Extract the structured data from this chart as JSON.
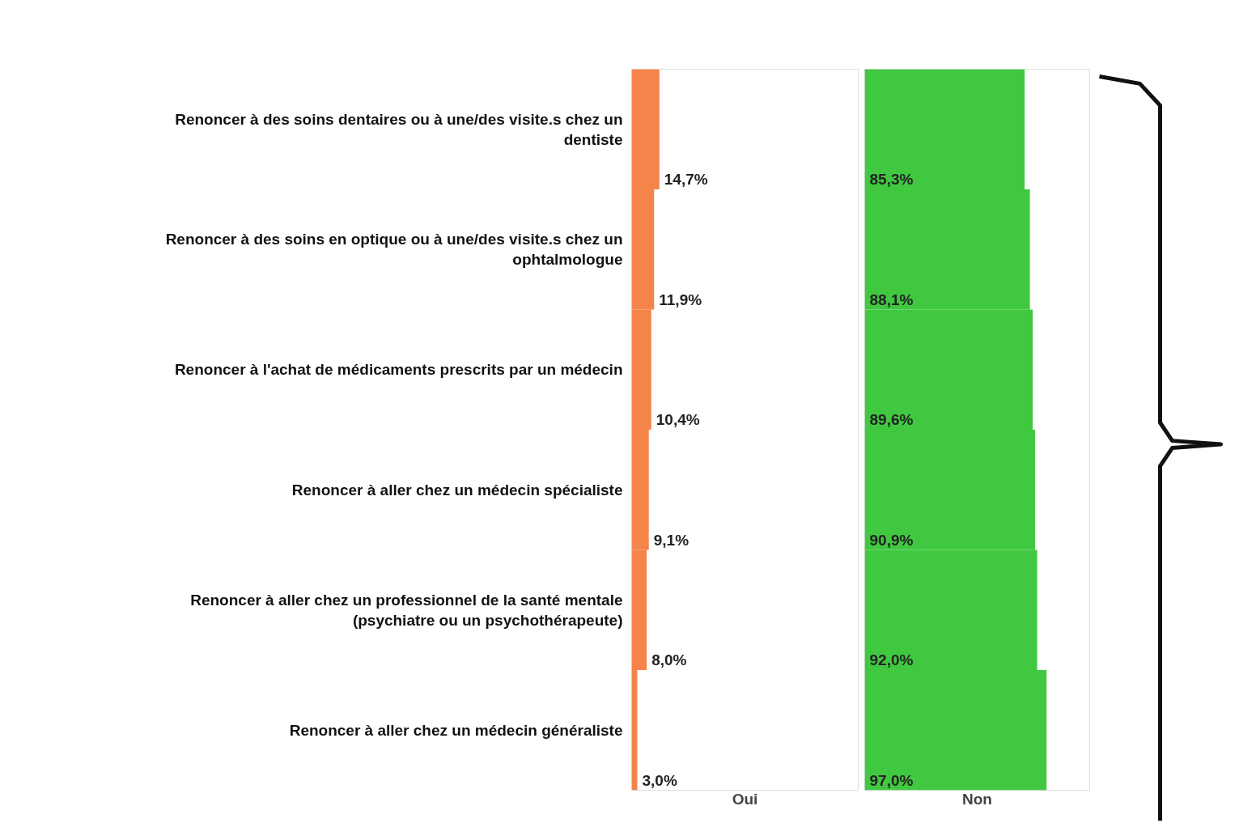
{
  "chart_data": [
    {
      "type": "bar",
      "orientation": "horizontal",
      "xlabel": "Oui",
      "categories": [
        "Renoncer à des soins dentaires ou à une/des visite.s chez un dentiste",
        "Renoncer à des soins en optique ou à une/des visite.s chez un ophtalmologue",
        "Renoncer à l'achat de médicaments prescrits par un médecin",
        "Renoncer à aller chez un médecin spécialiste",
        "Renoncer à aller chez un professionnel de la santé mentale (psychiatre ou un psychothérapeute)",
        "Renoncer à aller chez un médecin généraliste"
      ],
      "values": [
        14.7,
        11.9,
        10.4,
        9.1,
        8.0,
        3.0
      ],
      "color": "#f5844a",
      "value_labels": [
        "14,7%",
        "11,9%",
        "10,4%",
        "9,1%",
        "8,0%",
        "3,0%"
      ],
      "xlim": [
        0,
        120
      ],
      "tick_labels": "y"
    },
    {
      "type": "bar",
      "orientation": "horizontal",
      "xlabel": "Non",
      "categories": [
        "Renoncer à des soins dentaires ou à une/des visite.s chez un dentiste",
        "Renoncer à des soins en optique ou à une/des visite.s chez un ophtalmologue",
        "Renoncer à l'achat de médicaments prescrits par un médecin",
        "Renoncer à aller chez un médecin spécialiste",
        "Renoncer à aller chez un professionnel de la santé mentale (psychiatre ou un psychothérapeute)",
        "Renoncer à aller chez un médecin généraliste"
      ],
      "values": [
        85.3,
        88.1,
        89.6,
        90.9,
        92.0,
        97.0
      ],
      "color": "#40c840",
      "value_labels": [
        "85,3%",
        "88,1%",
        "89,6%",
        "90,9%",
        "92,0%",
        "97,0%"
      ],
      "xlim": [
        0,
        120
      ],
      "tick_labels": false
    }
  ]
}
